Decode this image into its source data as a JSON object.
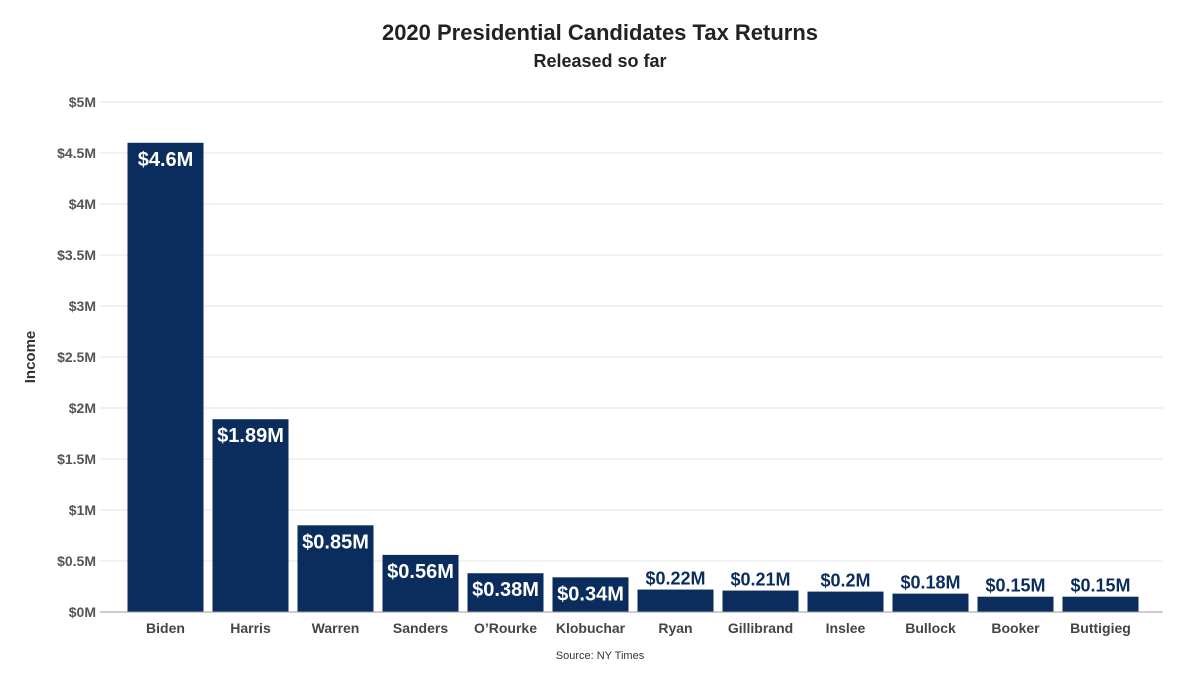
{
  "chart_data": {
    "type": "bar",
    "title": "2020 Presidential Candidates Tax Returns",
    "subtitle": "Released so far",
    "ylabel": "Income",
    "xlabel": "",
    "source": "Source: NY Times",
    "ylim": [
      0,
      5
    ],
    "yticks": [
      {
        "value": 0,
        "label": "$0M"
      },
      {
        "value": 0.5,
        "label": "$0.5M"
      },
      {
        "value": 1,
        "label": "$1M"
      },
      {
        "value": 1.5,
        "label": "$1.5M"
      },
      {
        "value": 2,
        "label": "$2M"
      },
      {
        "value": 2.5,
        "label": "$2.5M"
      },
      {
        "value": 3,
        "label": "$3M"
      },
      {
        "value": 3.5,
        "label": "$3.5M"
      },
      {
        "value": 4,
        "label": "$4M"
      },
      {
        "value": 4.5,
        "label": "$4.5M"
      },
      {
        "value": 5,
        "label": "$5M"
      }
    ],
    "grid": true,
    "bar_color": "#0a2d5e",
    "categories": [
      "Biden",
      "Harris",
      "Warren",
      "Sanders",
      "O’Rourke",
      "Klobuchar",
      "Ryan",
      "Gillibrand",
      "Inslee",
      "Bullock",
      "Booker",
      "Buttigieg"
    ],
    "values": [
      4.6,
      1.89,
      0.85,
      0.56,
      0.38,
      0.34,
      0.22,
      0.21,
      0.2,
      0.18,
      0.15,
      0.15
    ],
    "data_labels": [
      "$4.6M",
      "$1.89M",
      "$0.85M",
      "$0.56M",
      "$0.38M",
      "$0.34M",
      "$0.22M",
      "$0.21M",
      "$0.2M",
      "$0.18M",
      "$0.15M",
      "$0.15M"
    ]
  }
}
